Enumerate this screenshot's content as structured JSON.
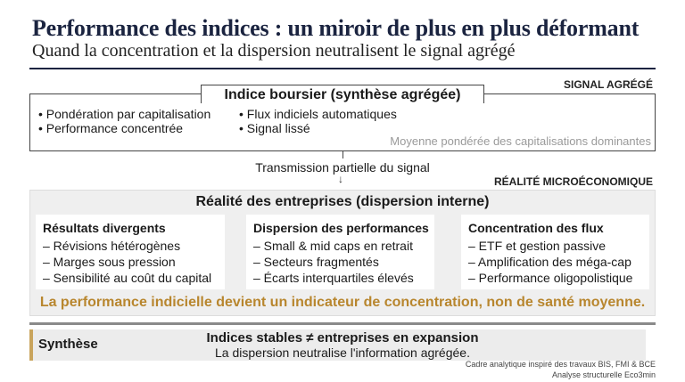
{
  "header": {
    "title": "Performance des indices : un miroir de plus en plus déformant",
    "subtitle": "Quand la concentration et la dispersion neutralisent le signal agrégé"
  },
  "signal": {
    "tag": "SIGNAL AGRÉGÉ",
    "box_title": "Indice boursier (synthèse agrégée)",
    "bullets_left": [
      "• Pondération par capitalisation",
      "• Performance concentrée"
    ],
    "bullets_right": [
      "• Flux indiciels automatiques",
      "• Signal lissé"
    ],
    "note": "Moyenne pondérée des capitalisations dominantes"
  },
  "transmission": {
    "label": "Transmission partielle du signal",
    "arrow": "↓"
  },
  "micro": {
    "tag": "RÉALITÉ MICROÉCONOMIQUE",
    "heading": "Réalité des entreprises (dispersion interne)",
    "cards": [
      {
        "title": "Résultats divergents",
        "items": [
          "– Révisions hétérogènes",
          "– Marges sous pression",
          "– Sensibilité au coût du capital"
        ]
      },
      {
        "title": "Dispersion des performances",
        "items": [
          "– Small & mid caps en retrait",
          "– Secteurs fragmentés",
          "– Écarts interquartiles élevés"
        ]
      },
      {
        "title": "Concentration des flux",
        "items": [
          "– ETF et gestion passive",
          "– Amplification des méga-cap",
          "– Performance oligopolistique"
        ]
      }
    ],
    "conclusion": "La performance indicielle devient un indicateur de concentration, non de santé moyenne.",
    "conclusion_color": "#b8862e"
  },
  "synthesis": {
    "label": "Synthèse",
    "line1": "Indices stables ≠ entreprises en expansion",
    "line2": "La dispersion neutralise l'information agrégée.",
    "accent_color": "#c9a45c"
  },
  "footer": {
    "line1": "Cadre analytique inspiré des travaux BIS, FMI & BCE",
    "line2": "Analyse structurelle Eco3min"
  }
}
